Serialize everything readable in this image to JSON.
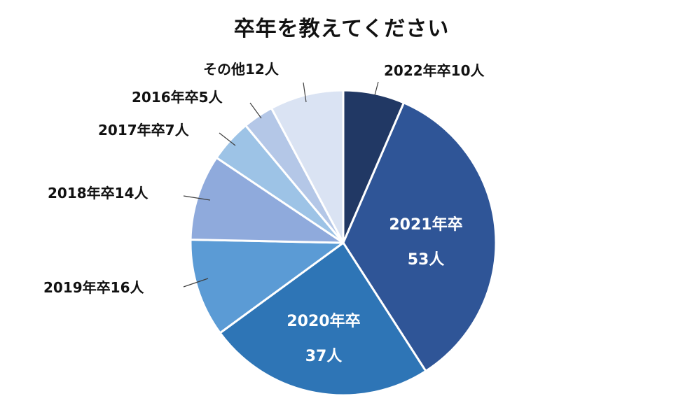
{
  "chart_data": {
    "type": "pie",
    "title": "卒年を教えてください",
    "slices": [
      {
        "category": "2022年卒",
        "value": 10,
        "count_label": "10人",
        "color": "#213864",
        "label_style": "outside"
      },
      {
        "category": "2021年卒",
        "value": 53,
        "count_label": "53人",
        "color": "#2f5597",
        "label_style": "inside"
      },
      {
        "category": "2020年卒",
        "value": 37,
        "count_label": "37人",
        "color": "#2e75b6",
        "label_style": "inside"
      },
      {
        "category": "2019年卒",
        "value": 16,
        "count_label": "16人",
        "color": "#5b9bd5",
        "label_style": "outside"
      },
      {
        "category": "2018年卒",
        "value": 14,
        "count_label": "14人",
        "color": "#8faadc",
        "label_style": "outside"
      },
      {
        "category": "2017年卒",
        "value": 7,
        "count_label": "7人",
        "color": "#9dc3e6",
        "label_style": "outside"
      },
      {
        "category": "2016年卒",
        "value": 5,
        "count_label": "5人",
        "color": "#b4c7e7",
        "label_style": "outside"
      },
      {
        "category": "その他",
        "value": 12,
        "count_label": "12人",
        "color": "#dae3f3",
        "label_style": "outside"
      }
    ]
  }
}
